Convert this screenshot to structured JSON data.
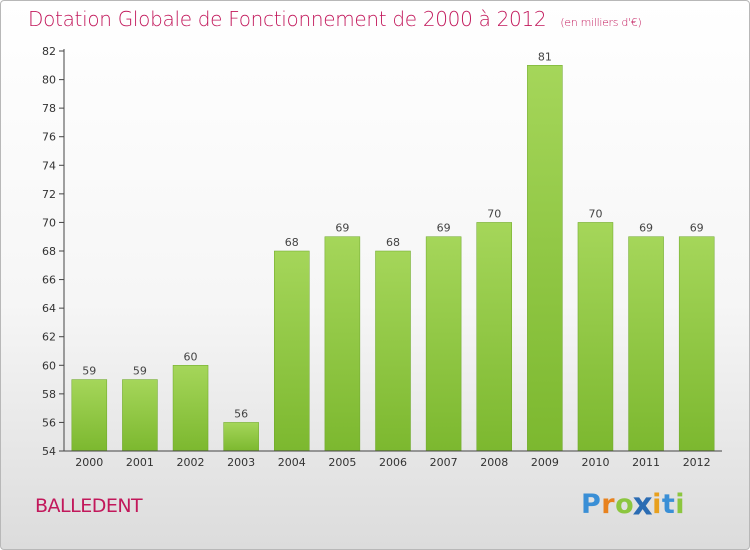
{
  "chart_data": {
    "type": "bar",
    "title": "Dotation Globale de Fonctionnement de 2000 à 2012",
    "subtitle": "(en milliers d'€)",
    "categories": [
      "2000",
      "2001",
      "2002",
      "2003",
      "2004",
      "2005",
      "2006",
      "2007",
      "2008",
      "2009",
      "2010",
      "2011",
      "2012"
    ],
    "values": [
      59,
      59,
      60,
      56,
      68,
      69,
      68,
      69,
      70,
      81,
      70,
      69,
      69
    ],
    "ylim": [
      54,
      82
    ],
    "yticks": [
      54,
      56,
      58,
      60,
      62,
      64,
      66,
      68,
      70,
      72,
      74,
      76,
      78,
      80,
      82
    ],
    "grid": false,
    "bar_color": "#7cb82f",
    "bar_color_light": "#a5d65a"
  },
  "location": "BALLEDENT",
  "brand": {
    "letters": [
      "P",
      "r",
      "o",
      "x",
      "i",
      "t",
      "i"
    ],
    "colors": [
      "#3a8fd6",
      "#e8821e",
      "#8cc63f",
      "#2b6cb3",
      "#e8a01e",
      "#3a8fd6",
      "#8cc63f"
    ]
  }
}
